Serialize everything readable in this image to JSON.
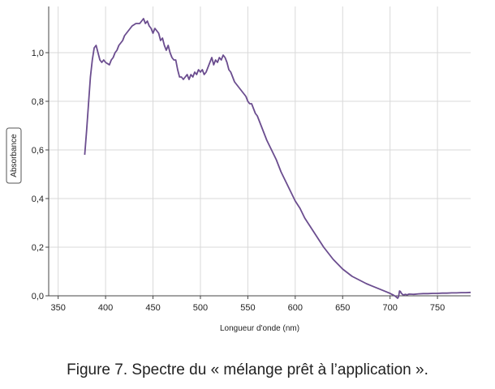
{
  "chart_data": {
    "type": "line",
    "xlabel": "Longueur d'onde (nm)",
    "ylabel": "Absorbance",
    "xlim": [
      340,
      785
    ],
    "ylim": [
      0,
      1.19
    ],
    "x_ticks": [
      "350",
      "400",
      "450",
      "500",
      "550",
      "600",
      "650",
      "700",
      "750"
    ],
    "y_ticks": [
      "0,0",
      "0,2",
      "0,4",
      "0,6",
      "0,8",
      "1,0"
    ],
    "grid": true,
    "line_color": "#6b4d8f",
    "series": [
      {
        "x": [
          378,
          380,
          382,
          384,
          386,
          388,
          390,
          392,
          394,
          396,
          398,
          400,
          402,
          404,
          406,
          408,
          410,
          412,
          414,
          416,
          418,
          420,
          422,
          424,
          426,
          428,
          430,
          432,
          434,
          436,
          438,
          440,
          442,
          444,
          446,
          448,
          450,
          452,
          454,
          456,
          458,
          460,
          462,
          464,
          466,
          468,
          470,
          472,
          474,
          476,
          478,
          480,
          482,
          484,
          486,
          488,
          490,
          492,
          494,
          496,
          498,
          500,
          502,
          504,
          506,
          508,
          510,
          512,
          514,
          516,
          518,
          520,
          522,
          524,
          526,
          528,
          530,
          532,
          534,
          536,
          538,
          540,
          542,
          544,
          546,
          548,
          550,
          552,
          554,
          556,
          558,
          560,
          562,
          564,
          566,
          568,
          570,
          575,
          580,
          585,
          590,
          595,
          600,
          605,
          610,
          615,
          620,
          625,
          630,
          635,
          640,
          645,
          650,
          655,
          660,
          665,
          670,
          675,
          680,
          685,
          690,
          695,
          700,
          703,
          706,
          708,
          709,
          710,
          711,
          712,
          714,
          716,
          718,
          720,
          725,
          730,
          735,
          740,
          745,
          750,
          755,
          760,
          765,
          770,
          775,
          780,
          785
        ],
        "y": [
          0.58,
          0.68,
          0.79,
          0.9,
          0.97,
          1.02,
          1.03,
          1.0,
          0.97,
          0.96,
          0.97,
          0.96,
          0.955,
          0.95,
          0.97,
          0.98,
          1.0,
          1.01,
          1.03,
          1.04,
          1.05,
          1.07,
          1.08,
          1.09,
          1.1,
          1.11,
          1.115,
          1.12,
          1.12,
          1.12,
          1.13,
          1.14,
          1.12,
          1.13,
          1.11,
          1.1,
          1.08,
          1.1,
          1.09,
          1.08,
          1.05,
          1.06,
          1.03,
          1.01,
          1.03,
          1.0,
          0.98,
          0.97,
          0.97,
          0.93,
          0.9,
          0.9,
          0.89,
          0.9,
          0.91,
          0.89,
          0.91,
          0.9,
          0.92,
          0.91,
          0.93,
          0.92,
          0.93,
          0.91,
          0.92,
          0.94,
          0.96,
          0.98,
          0.95,
          0.97,
          0.96,
          0.98,
          0.97,
          0.99,
          0.98,
          0.96,
          0.93,
          0.92,
          0.9,
          0.88,
          0.87,
          0.86,
          0.85,
          0.84,
          0.83,
          0.82,
          0.8,
          0.79,
          0.79,
          0.77,
          0.75,
          0.74,
          0.72,
          0.7,
          0.68,
          0.66,
          0.64,
          0.6,
          0.56,
          0.51,
          0.47,
          0.43,
          0.39,
          0.36,
          0.32,
          0.29,
          0.26,
          0.23,
          0.2,
          0.175,
          0.15,
          0.13,
          0.11,
          0.095,
          0.08,
          0.07,
          0.06,
          0.05,
          0.042,
          0.034,
          0.026,
          0.018,
          0.01,
          0.004,
          -0.003,
          -0.01,
          -0.003,
          0.02,
          0.017,
          0.01,
          0.003,
          0.006,
          0.004,
          0.007,
          0.006,
          0.008,
          0.009,
          0.009,
          0.01,
          0.01,
          0.011,
          0.011,
          0.012,
          0.012,
          0.013,
          0.013,
          0.014
        ]
      }
    ]
  },
  "caption": "Figure 7. Spectre du « mélange prêt à l’application »."
}
